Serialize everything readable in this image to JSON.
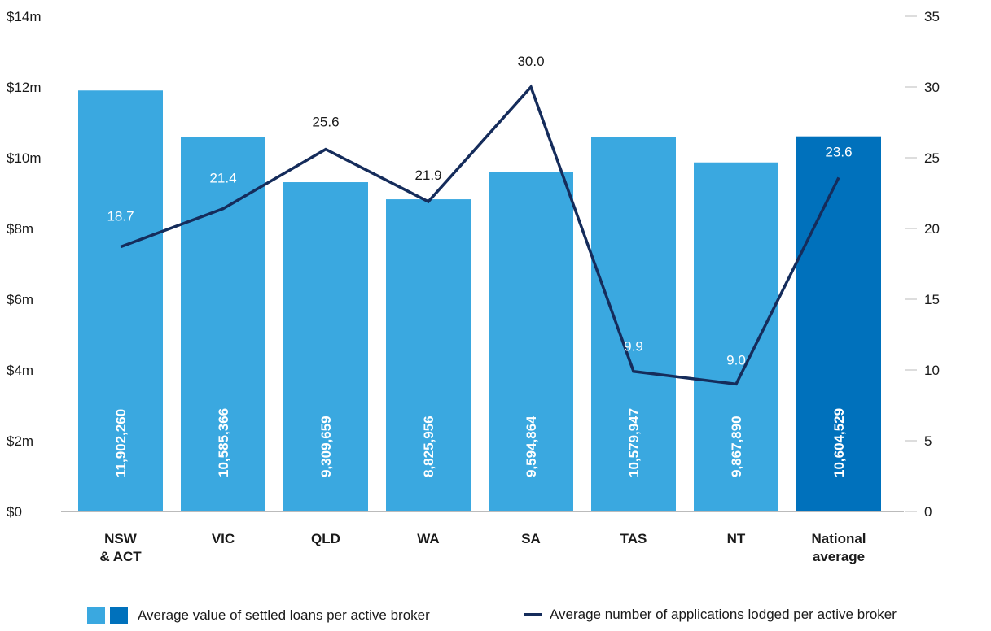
{
  "chart_data": {
    "type": "bar",
    "categories": [
      [
        "NSW",
        "& ACT"
      ],
      [
        "VIC"
      ],
      [
        "QLD"
      ],
      [
        "WA"
      ],
      [
        "SA"
      ],
      [
        "TAS"
      ],
      [
        "NT"
      ],
      [
        "National",
        "average"
      ]
    ],
    "series": [
      {
        "name": "Average value of settled loans per active broker",
        "type": "bar",
        "axis": "left",
        "values": [
          11902260,
          10585366,
          9309659,
          8825956,
          9594864,
          10579947,
          9867890,
          10604529
        ],
        "labels": [
          "11,902,260",
          "10,585,366",
          "9,309,659",
          "8,825,956",
          "9,594,864",
          "10,579,947",
          "9,867,890",
          "10,604,529"
        ],
        "colors": [
          "#3aa8e0",
          "#3aa8e0",
          "#3aa8e0",
          "#3aa8e0",
          "#3aa8e0",
          "#3aa8e0",
          "#3aa8e0",
          "#0071bc"
        ]
      },
      {
        "name": "Average number of applications lodged per active broker",
        "type": "line",
        "axis": "right",
        "values": [
          18.7,
          21.4,
          25.6,
          21.9,
          30.0,
          9.9,
          9.0,
          23.6
        ],
        "labels": [
          "18.7",
          "21.4",
          "25.6",
          "21.9",
          "30.0",
          "9.9",
          "9.0",
          "23.6"
        ],
        "color": "#152c5b"
      }
    ],
    "y_left": {
      "min": 0,
      "max": 14000000,
      "ticks": [
        0,
        2000000,
        4000000,
        6000000,
        8000000,
        10000000,
        12000000,
        14000000
      ],
      "tick_labels": [
        "$0",
        "$2m",
        "$4m",
        "$6m",
        "$8m",
        "$10m",
        "$12m",
        "$14m"
      ]
    },
    "y_right": {
      "min": 0,
      "max": 35,
      "ticks": [
        0,
        5,
        10,
        15,
        20,
        25,
        30,
        35
      ],
      "tick_labels": [
        "0",
        "5",
        "10",
        "15",
        "20",
        "25",
        "30",
        "35"
      ]
    },
    "grid": false,
    "legend_position": "bottom"
  },
  "colors": {
    "bar": "#3aa8e0",
    "bar_highlight": "#0071bc",
    "line": "#152c5b",
    "axis": "#bbbbbb"
  }
}
